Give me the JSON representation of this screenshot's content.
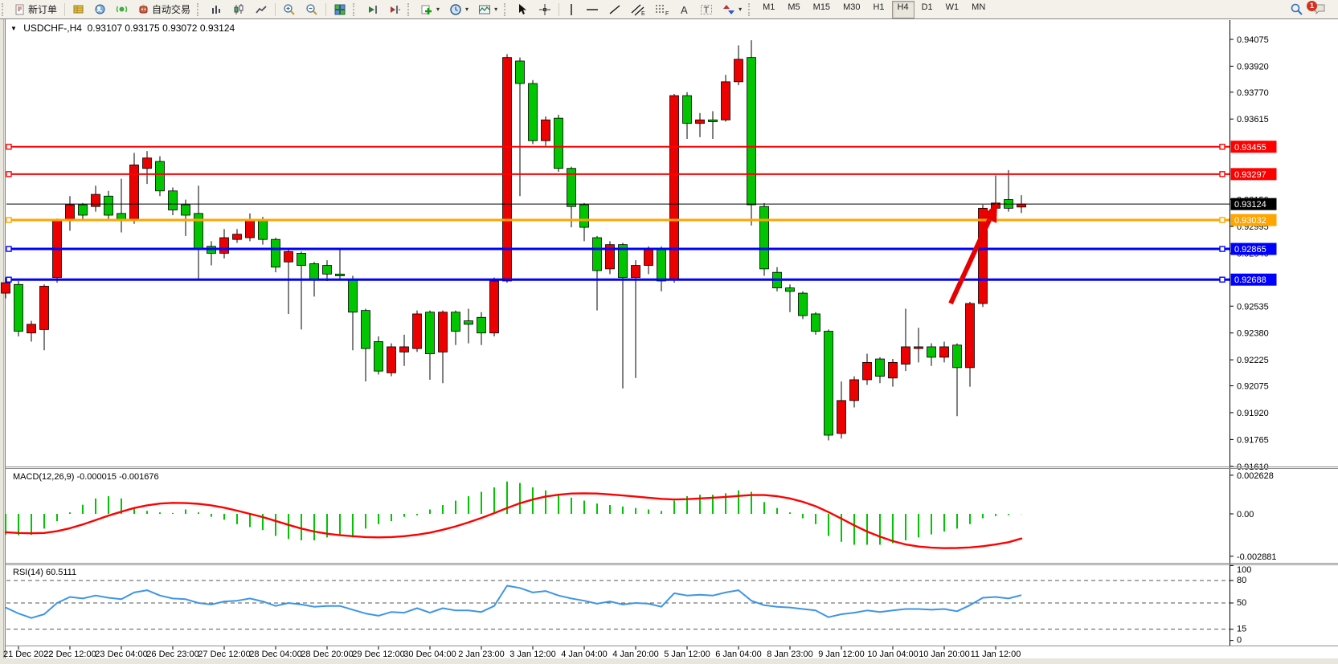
{
  "toolbar": {
    "new_order_label": "新订单",
    "autotrading_label": "自动交易",
    "timeframes": [
      "M1",
      "M5",
      "M15",
      "M30",
      "H1",
      "H4",
      "D1",
      "W1",
      "MN"
    ],
    "active_timeframe": "H4",
    "notification_badge": "1"
  },
  "window": {
    "symbol_period": "USDCHF-,H4",
    "open": "0.93107",
    "high": "0.93175",
    "low": "0.93072",
    "close": "0.93124"
  },
  "main_chart": {
    "price_ticks": [
      "0.94075",
      "0.93920",
      "0.93770",
      "0.93615",
      "0.93150",
      "0.92995",
      "0.92840",
      "0.92535",
      "0.92380",
      "0.92225",
      "0.92075",
      "0.91920",
      "0.91765",
      "0.91610"
    ],
    "price_tick_values": [
      0.94075,
      0.9392,
      0.9377,
      0.93615,
      0.9315,
      0.92995,
      0.9284,
      0.92535,
      0.9238,
      0.92225,
      0.92075,
      0.9192,
      0.91765,
      0.9161
    ],
    "hlines": [
      {
        "price": 0.93455,
        "label": "0.93455",
        "color": "#FF0000",
        "thickness": 2
      },
      {
        "price": 0.93297,
        "label": "0.93297",
        "color": "#FF0000",
        "thickness": 2
      },
      {
        "price": 0.93032,
        "label": "0.93032",
        "color": "#FFA500",
        "thickness": 3
      },
      {
        "price": 0.92865,
        "label": "0.92865",
        "color": "#0000FF",
        "thickness": 3
      },
      {
        "price": 0.92688,
        "label": "0.92688",
        "color": "#0000FF",
        "thickness": 3
      }
    ],
    "bid_line": {
      "price": 0.93124,
      "label": "0.93124",
      "color": "#000000"
    },
    "arrow_color": "#E60000"
  },
  "macd_panel": {
    "label": "MACD(12,26,9) -0.000015 -0.001676",
    "axis_labels": [
      "0.002628",
      "0.00",
      "-0.002881"
    ],
    "axis_values": [
      0.002628,
      0,
      -0.002881
    ],
    "histogram_color": "#00C500",
    "signal_color": "#FF0000"
  },
  "rsi_panel": {
    "label": "RSI(14) 60.5111",
    "axis_labels": [
      "100",
      "80",
      "50",
      "15",
      "0"
    ],
    "axis_values": [
      100,
      80,
      50,
      15,
      0
    ],
    "level_lines": [
      80,
      50,
      15
    ],
    "line_color": "#3E95E5"
  },
  "time_axis": {
    "labels": [
      "21 Dec 2022",
      "22 Dec 12:00",
      "23 Dec 04:00",
      "26 Dec 23:00",
      "27 Dec 12:00",
      "28 Dec 04:00",
      "28 Dec 20:00",
      "29 Dec 12:00",
      "30 Dec 04:00",
      "2 Jan 23:00",
      "3 Jan 12:00",
      "4 Jan 04:00",
      "4 Jan 20:00",
      "5 Jan 12:00",
      "6 Jan 04:00",
      "8 Jan 23:00",
      "9 Jan 12:00",
      "10 Jan 04:00",
      "10 Jan 20:00",
      "11 Jan 12:00"
    ]
  },
  "chart_data": {
    "type": "candlestick",
    "symbol": "USDCHF-",
    "timeframe": "H4",
    "bull_color": "#EC0000",
    "bear_color": "#00C500",
    "note": "red = up, green = down (Chinese color convention)",
    "candles": [
      [
        0.9261,
        0.927,
        0.9258,
        0.9267
      ],
      [
        0.9266,
        0.9268,
        0.9236,
        0.9239
      ],
      [
        0.9238,
        0.9245,
        0.9233,
        0.9243
      ],
      [
        0.924,
        0.9266,
        0.9228,
        0.9265
      ],
      [
        0.927,
        0.9304,
        0.9267,
        0.9303
      ],
      [
        0.9303,
        0.9317,
        0.9297,
        0.9312
      ],
      [
        0.9312,
        0.9313,
        0.9303,
        0.9306
      ],
      [
        0.9311,
        0.9323,
        0.9308,
        0.9318
      ],
      [
        0.9317,
        0.932,
        0.9303,
        0.9306
      ],
      [
        0.9307,
        0.9327,
        0.9296,
        0.9303
      ],
      [
        0.9303,
        0.9342,
        0.9301,
        0.9335
      ],
      [
        0.9333,
        0.9343,
        0.9324,
        0.9339
      ],
      [
        0.9337,
        0.934,
        0.9317,
        0.932
      ],
      [
        0.932,
        0.9322,
        0.9306,
        0.9309
      ],
      [
        0.9312,
        0.9315,
        0.9294,
        0.9306
      ],
      [
        0.9307,
        0.9323,
        0.9269,
        0.9287
      ],
      [
        0.9288,
        0.9291,
        0.9277,
        0.9284
      ],
      [
        0.9284,
        0.9298,
        0.9281,
        0.9293
      ],
      [
        0.9292,
        0.9298,
        0.929,
        0.9295
      ],
      [
        0.9293,
        0.9307,
        0.9291,
        0.9303
      ],
      [
        0.9303,
        0.9305,
        0.9289,
        0.9292
      ],
      [
        0.9292,
        0.9293,
        0.9273,
        0.9276
      ],
      [
        0.9279,
        0.9287,
        0.9249,
        0.9285
      ],
      [
        0.9284,
        0.9285,
        0.924,
        0.9277
      ],
      [
        0.9278,
        0.9279,
        0.9259,
        0.9269
      ],
      [
        0.9277,
        0.928,
        0.9268,
        0.9272
      ],
      [
        0.9272,
        0.9287,
        0.9269,
        0.9271
      ],
      [
        0.9269,
        0.9271,
        0.9228,
        0.925
      ],
      [
        0.9251,
        0.9252,
        0.921,
        0.9229
      ],
      [
        0.9233,
        0.9236,
        0.9214,
        0.9216
      ],
      [
        0.9215,
        0.9232,
        0.9213,
        0.923
      ],
      [
        0.9227,
        0.9237,
        0.9219,
        0.923
      ],
      [
        0.9229,
        0.9251,
        0.9227,
        0.9249
      ],
      [
        0.925,
        0.9251,
        0.9211,
        0.9226
      ],
      [
        0.9227,
        0.9251,
        0.9209,
        0.925
      ],
      [
        0.925,
        0.9251,
        0.9231,
        0.9239
      ],
      [
        0.9245,
        0.9252,
        0.9232,
        0.9243
      ],
      [
        0.9247,
        0.925,
        0.9231,
        0.9238
      ],
      [
        0.9238,
        0.927,
        0.9236,
        0.9268
      ],
      [
        0.9268,
        0.9399,
        0.9267,
        0.9397
      ],
      [
        0.9395,
        0.9397,
        0.9317,
        0.9382
      ],
      [
        0.9382,
        0.9384,
        0.9347,
        0.9349
      ],
      [
        0.9349,
        0.9363,
        0.9346,
        0.9361
      ],
      [
        0.9362,
        0.9364,
        0.9331,
        0.9333
      ],
      [
        0.9333,
        0.9334,
        0.9299,
        0.9311
      ],
      [
        0.9312,
        0.9313,
        0.9291,
        0.9299
      ],
      [
        0.9293,
        0.9294,
        0.9251,
        0.9274
      ],
      [
        0.9275,
        0.9291,
        0.9272,
        0.9289
      ],
      [
        0.9289,
        0.929,
        0.9206,
        0.927
      ],
      [
        0.927,
        0.928,
        0.9212,
        0.9277
      ],
      [
        0.9277,
        0.9288,
        0.9272,
        0.9286
      ],
      [
        0.9286,
        0.9288,
        0.9262,
        0.9268
      ],
      [
        0.9269,
        0.9376,
        0.9267,
        0.9375
      ],
      [
        0.9375,
        0.9377,
        0.935,
        0.9359
      ],
      [
        0.9359,
        0.9365,
        0.9351,
        0.9361
      ],
      [
        0.9361,
        0.9366,
        0.935,
        0.936
      ],
      [
        0.9361,
        0.9387,
        0.936,
        0.9383
      ],
      [
        0.9383,
        0.9404,
        0.9381,
        0.9396
      ],
      [
        0.9397,
        0.9407,
        0.93,
        0.9312
      ],
      [
        0.9311,
        0.9313,
        0.9271,
        0.9275
      ],
      [
        0.9273,
        0.9276,
        0.9262,
        0.9264
      ],
      [
        0.9264,
        0.9266,
        0.925,
        0.9262
      ],
      [
        0.9261,
        0.9262,
        0.9246,
        0.9248
      ],
      [
        0.9249,
        0.925,
        0.9237,
        0.9239
      ],
      [
        0.9239,
        0.924,
        0.9176,
        0.9179
      ],
      [
        0.918,
        0.921,
        0.9177,
        0.9199
      ],
      [
        0.9199,
        0.9213,
        0.9195,
        0.9211
      ],
      [
        0.9211,
        0.9226,
        0.9208,
        0.9221
      ],
      [
        0.9223,
        0.9224,
        0.9209,
        0.9213
      ],
      [
        0.9212,
        0.9223,
        0.9207,
        0.9221
      ],
      [
        0.922,
        0.9252,
        0.9216,
        0.923
      ],
      [
        0.9229,
        0.9241,
        0.9221,
        0.923
      ],
      [
        0.923,
        0.9232,
        0.9219,
        0.9224
      ],
      [
        0.9224,
        0.9233,
        0.9221,
        0.923
      ],
      [
        0.9231,
        0.9232,
        0.919,
        0.9218
      ],
      [
        0.9218,
        0.9256,
        0.9207,
        0.9255
      ],
      [
        0.9255,
        0.9312,
        0.9253,
        0.931
      ],
      [
        0.931,
        0.9329,
        0.9308,
        0.9313
      ],
      [
        0.9315,
        0.9332,
        0.9308,
        0.931
      ],
      [
        0.93107,
        0.93175,
        0.93072,
        0.93124
      ]
    ],
    "macd_histogram": [
      -0.00142,
      -0.00145,
      -0.00143,
      -0.001,
      -0.0005,
      0.0001,
      0.00062,
      0.00105,
      0.0012,
      0.00105,
      0.00042,
      0.0002,
      0.0001,
      6e-05,
      0.0003,
      0.0001,
      -0.0002,
      -0.0004,
      -0.0007,
      -0.0009,
      -0.0011,
      -0.0015,
      -0.0017,
      -0.0018,
      -0.0018,
      -0.0016,
      -0.0015,
      -0.0016,
      -0.001,
      -0.0007,
      -0.0005,
      -0.0002,
      -0.0001,
      0.0003,
      0.0006,
      0.0009,
      0.0012,
      0.0015,
      0.0018,
      0.0022,
      0.0021,
      0.0018,
      0.0016,
      0.0013,
      0.0011,
      0.0009,
      0.0007,
      0.0006,
      0.0005,
      0.0004,
      0.0003,
      0.0002,
      0.0009,
      0.0012,
      0.0013,
      0.0013,
      0.0014,
      0.0016,
      0.0015,
      0.0008,
      0.0004,
      0.0001,
      -0.0003,
      -0.0007,
      -0.0015,
      -0.0019,
      -0.0021,
      -0.0021,
      -0.0021,
      -0.002,
      -0.0018,
      -0.0016,
      -0.0014,
      -0.0012,
      -0.001,
      -0.0007,
      -0.0003,
      -0.00015,
      -8e-05,
      -1.5e-05
    ],
    "macd_signal": [
      -0.00125,
      -0.0013,
      -0.00132,
      -0.0013,
      -0.00118,
      -0.00098,
      -0.00072,
      -0.00042,
      -0.00012,
      0.00015,
      0.0004,
      0.00058,
      0.0007,
      0.00075,
      0.00073,
      0.00068,
      0.00058,
      0.00042,
      0.00022,
      0.0,
      -0.00022,
      -0.00048,
      -0.00075,
      -0.001,
      -0.0012,
      -0.00135,
      -0.00145,
      -0.00152,
      -0.00158,
      -0.0016,
      -0.00158,
      -0.00152,
      -0.00142,
      -0.00128,
      -0.00108,
      -0.00085,
      -0.00058,
      -0.00028,
      5e-05,
      0.0004,
      0.00072,
      0.00098,
      0.00118,
      0.0013,
      0.00138,
      0.0014,
      0.00138,
      0.00132,
      0.00125,
      0.00118,
      0.0011,
      0.00102,
      0.00098,
      0.001,
      0.00105,
      0.0011,
      0.00115,
      0.00122,
      0.00128,
      0.00128,
      0.0012,
      0.00105,
      0.00082,
      0.00052,
      0.00012,
      -0.00032,
      -0.00078,
      -0.0012,
      -0.00155,
      -0.00185,
      -0.00208,
      -0.00222,
      -0.0023,
      -0.00233,
      -0.00232,
      -0.00228,
      -0.0022,
      -0.00208,
      -0.00193,
      -0.001676
    ],
    "rsi": [
      44,
      36,
      30,
      35,
      50,
      58,
      56,
      60,
      57,
      55,
      64,
      67,
      60,
      56,
      55,
      50,
      48,
      52,
      53,
      56,
      52,
      46,
      50,
      48,
      45,
      46,
      46,
      41,
      36,
      33,
      38,
      37,
      43,
      37,
      43,
      40,
      40,
      38,
      46,
      73,
      70,
      64,
      66,
      60,
      56,
      53,
      49,
      52,
      48,
      50,
      49,
      45,
      63,
      60,
      61,
      60,
      64,
      67,
      53,
      47,
      45,
      44,
      42,
      40,
      31,
      35,
      37,
      40,
      38,
      40,
      42,
      42,
      41,
      42,
      39,
      47,
      57,
      58,
      56,
      60.51
    ]
  }
}
